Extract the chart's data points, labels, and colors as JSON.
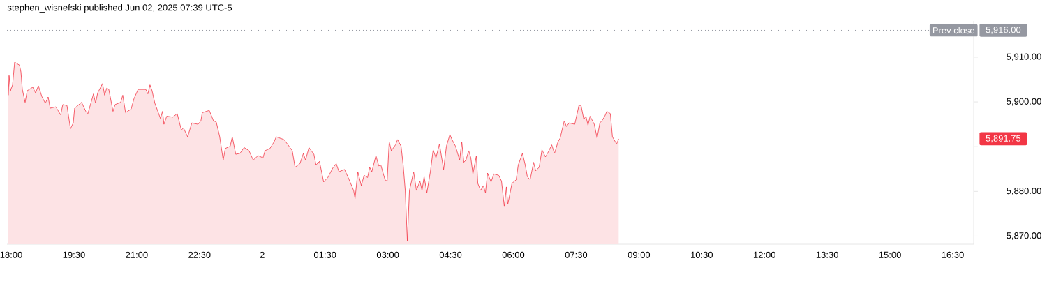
{
  "chart_data": {
    "type": "area",
    "title": "stephen_wisnefski published Jun 02, 2025 07:39 UTC-5",
    "x": [
      "2025-06-01T17:56",
      "2025-06-01T17:57",
      "2025-06-01T17:59",
      "2025-06-01T18:02",
      "2025-06-01T18:05",
      "2025-06-01T18:12",
      "2025-06-01T18:14",
      "2025-06-01T18:16",
      "2025-06-01T18:20",
      "2025-06-01T18:23",
      "2025-06-01T18:31",
      "2025-06-01T18:35",
      "2025-06-01T18:39",
      "2025-06-01T18:44",
      "2025-06-01T18:49",
      "2025-06-01T18:53",
      "2025-06-01T18:56",
      "2025-06-01T19:04",
      "2025-06-01T19:11",
      "2025-06-01T19:14",
      "2025-06-01T19:20",
      "2025-06-01T19:25",
      "2025-06-01T19:29",
      "2025-06-01T19:31",
      "2025-06-01T19:41",
      "2025-06-01T19:47",
      "2025-06-01T19:50",
      "2025-06-01T19:58",
      "2025-06-01T20:01",
      "2025-06-01T20:04",
      "2025-06-01T20:11",
      "2025-06-01T20:14",
      "2025-06-01T20:17",
      "2025-06-01T20:20",
      "2025-06-01T20:26",
      "2025-06-01T20:29",
      "2025-06-01T20:37",
      "2025-06-01T20:40",
      "2025-06-01T20:44",
      "2025-06-01T20:52",
      "2025-06-01T20:56",
      "2025-06-01T21:02",
      "2025-06-01T21:13",
      "2025-06-01T21:16",
      "2025-06-01T21:19",
      "2025-06-01T21:22",
      "2025-06-01T21:26",
      "2025-06-01T21:34",
      "2025-06-01T21:37",
      "2025-06-01T21:39",
      "2025-06-01T21:43",
      "2025-06-01T21:52",
      "2025-06-01T21:58",
      "2025-06-01T22:04",
      "2025-06-01T22:07",
      "2025-06-01T22:13",
      "2025-06-01T22:19",
      "2025-06-01T22:28",
      "2025-06-01T22:32",
      "2025-06-01T22:34",
      "2025-06-01T22:44",
      "2025-06-01T22:50",
      "2025-06-01T22:54",
      "2025-06-01T22:59",
      "2025-06-01T23:04",
      "2025-06-01T23:07",
      "2025-06-01T23:14",
      "2025-06-01T23:17",
      "2025-06-01T23:22",
      "2025-06-01T23:28",
      "2025-06-01T23:34",
      "2025-06-01T23:41",
      "2025-06-01T23:47",
      "2025-06-01T23:54",
      "2025-06-02T00:01",
      "2025-06-02T00:04",
      "2025-06-02T00:11",
      "2025-06-02T00:17",
      "2025-06-02T00:20",
      "2025-06-02T00:31",
      "2025-06-02T00:37",
      "2025-06-02T00:43",
      "2025-06-02T00:47",
      "2025-06-02T00:54",
      "2025-06-02T00:59",
      "2025-06-02T01:02",
      "2025-06-02T01:07",
      "2025-06-02T01:14",
      "2025-06-02T01:17",
      "2025-06-02T01:22",
      "2025-06-02T01:28",
      "2025-06-02T01:34",
      "2025-06-02T01:41",
      "2025-06-02T01:46",
      "2025-06-02T01:50",
      "2025-06-02T01:58",
      "2025-06-02T02:04",
      "2025-06-02T02:11",
      "2025-06-02T02:13",
      "2025-06-02T02:17",
      "2025-06-02T02:22",
      "2025-06-02T02:26",
      "2025-06-02T02:31",
      "2025-06-02T02:34",
      "2025-06-02T02:37",
      "2025-06-02T02:43",
      "2025-06-02T02:47",
      "2025-06-02T02:50",
      "2025-06-02T02:56",
      "2025-06-02T02:59",
      "2025-06-02T03:02",
      "2025-06-02T03:05",
      "2025-06-02T03:11",
      "2025-06-02T03:14",
      "2025-06-02T03:19",
      "2025-06-02T03:22",
      "2025-06-02T03:25",
      "2025-06-02T03:28",
      "2025-06-02T03:31",
      "2025-06-02T03:37",
      "2025-06-02T03:41",
      "2025-06-02T03:46",
      "2025-06-02T03:49",
      "2025-06-02T03:52",
      "2025-06-02T03:56",
      "2025-06-02T04:01",
      "2025-06-02T04:05",
      "2025-06-02T04:09",
      "2025-06-02T04:14",
      "2025-06-02T04:20",
      "2025-06-02T04:24",
      "2025-06-02T04:29",
      "2025-06-02T04:32",
      "2025-06-02T04:37",
      "2025-06-02T04:43",
      "2025-06-02T04:46",
      "2025-06-02T04:49",
      "2025-06-02T04:52",
      "2025-06-02T04:56",
      "2025-06-02T04:59",
      "2025-06-02T05:02",
      "2025-06-02T05:07",
      "2025-06-02T05:09",
      "2025-06-02T05:13",
      "2025-06-02T05:17",
      "2025-06-02T05:20",
      "2025-06-02T05:23",
      "2025-06-02T05:28",
      "2025-06-02T05:32",
      "2025-06-02T05:39",
      "2025-06-02T05:43",
      "2025-06-02T05:47",
      "2025-06-02T05:50",
      "2025-06-02T05:52",
      "2025-06-02T05:58",
      "2025-06-02T06:04",
      "2025-06-02T06:07",
      "2025-06-02T06:13",
      "2025-06-02T06:17",
      "2025-06-02T06:20",
      "2025-06-02T06:24",
      "2025-06-02T06:29",
      "2025-06-02T06:32",
      "2025-06-02T06:37",
      "2025-06-02T06:41",
      "2025-06-02T06:46",
      "2025-06-02T06:50",
      "2025-06-02T06:55",
      "2025-06-02T06:59",
      "2025-06-02T07:04",
      "2025-06-02T07:07",
      "2025-06-02T07:13",
      "2025-06-02T07:16",
      "2025-06-02T07:20",
      "2025-06-02T07:28",
      "2025-06-02T07:34",
      "2025-06-02T07:37",
      "2025-06-02T07:41",
      "2025-06-02T07:44",
      "2025-06-02T07:47",
      "2025-06-02T07:50",
      "2025-06-02T07:56",
      "2025-06-02T08:00",
      "2025-06-02T08:04",
      "2025-06-02T08:07",
      "2025-06-02T08:11",
      "2025-06-02T08:14",
      "2025-06-02T08:19",
      "2025-06-02T08:22",
      "2025-06-02T08:28",
      "2025-06-02T08:31"
    ],
    "series": [
      {
        "color": "#f23645",
        "values": [
          5901.5,
          5905.9,
          5902.5,
          5903.8,
          5908.9,
          5908.2,
          5906.7,
          5902.8,
          5899.9,
          5902.5,
          5903.3,
          5902.0,
          5903.6,
          5901.2,
          5899.7,
          5901.1,
          5898.6,
          5898.9,
          5897.1,
          5899.4,
          5899.2,
          5894.0,
          5895.3,
          5898.6,
          5899.9,
          5897.9,
          5897.4,
          5901.8,
          5899.7,
          5902.0,
          5904.1,
          5901.5,
          5903.1,
          5902.8,
          5897.9,
          5899.4,
          5899.9,
          5901.5,
          5897.6,
          5898.4,
          5900.7,
          5902.8,
          5902.8,
          5901.8,
          5903.8,
          5902.5,
          5899.7,
          5896.3,
          5897.9,
          5895.0,
          5896.8,
          5896.6,
          5897.4,
          5893.7,
          5894.2,
          5892.2,
          5895.3,
          5895.0,
          5895.8,
          5897.6,
          5898.1,
          5895.8,
          5895.5,
          5892.2,
          5887.0,
          5889.6,
          5890.1,
          5892.2,
          5888.3,
          5888.5,
          5889.8,
          5889.1,
          5887.0,
          5888.0,
          5887.5,
          5889.1,
          5889.6,
          5891.1,
          5892.2,
          5891.6,
          5890.4,
          5889.1,
          5885.4,
          5886.2,
          5888.5,
          5887.0,
          5889.8,
          5888.3,
          5885.9,
          5886.7,
          5882.1,
          5883.1,
          5885.2,
          5886.2,
          5884.4,
          5884.9,
          5882.8,
          5880.2,
          5878.4,
          5884.4,
          5881.3,
          5883.6,
          5883.1,
          5885.4,
          5884.4,
          5888.0,
          5885.7,
          5885.9,
          5882.6,
          5882.3,
          5891.1,
          5889.1,
          5890.4,
          5891.6,
          5890.1,
          5885.9,
          5880.2,
          5868.9,
          5880.2,
          5884.4,
          5880.2,
          5882.3,
          5880.2,
          5883.3,
          5879.7,
          5884.4,
          5889.3,
          5887.5,
          5890.6,
          5884.9,
          5890.1,
          5892.7,
          5891.6,
          5890.1,
          5887.0,
          5891.1,
          5886.5,
          5887.0,
          5889.1,
          5887.5,
          5883.9,
          5888.0,
          5881.8,
          5880.2,
          5881.3,
          5879.7,
          5884.1,
          5882.1,
          5883.9,
          5883.6,
          5882.3,
          5876.6,
          5881.0,
          5877.1,
          5881.8,
          5882.6,
          5885.9,
          5888.5,
          5885.9,
          5883.3,
          5882.6,
          5886.5,
          5884.6,
          5885.4,
          5889.3,
          5887.7,
          5888.8,
          5890.4,
          5888.5,
          5891.1,
          5891.9,
          5895.8,
          5894.5,
          5895.3,
          5895.0,
          5899.2,
          5899.2,
          5896.1,
          5896.8,
          5894.8,
          5896.8,
          5895.0,
          5891.9,
          5895.3,
          5895.8,
          5896.8,
          5897.9,
          5897.4,
          5892.2,
          5890.6,
          5891.75
        ]
      }
    ],
    "xlim": [
      "2025-06-01T17:54",
      "2025-06-02T17:00"
    ],
    "ylim": [
      5868.2,
      5918.1
    ],
    "xticks": [
      {
        "value": "2025-06-01T18:00",
        "label": "18:00"
      },
      {
        "value": "2025-06-01T19:30",
        "label": "19:30"
      },
      {
        "value": "2025-06-01T21:00",
        "label": "21:00"
      },
      {
        "value": "2025-06-01T22:30",
        "label": "22:30"
      },
      {
        "value": "2025-06-02T00:00",
        "label": "2"
      },
      {
        "value": "2025-06-02T01:30",
        "label": "01:30"
      },
      {
        "value": "2025-06-02T03:00",
        "label": "03:00"
      },
      {
        "value": "2025-06-02T04:30",
        "label": "04:30"
      },
      {
        "value": "2025-06-02T06:00",
        "label": "06:00"
      },
      {
        "value": "2025-06-02T07:30",
        "label": "07:30"
      },
      {
        "value": "2025-06-02T09:00",
        "label": "09:00"
      },
      {
        "value": "2025-06-02T10:30",
        "label": "10:30"
      },
      {
        "value": "2025-06-02T12:00",
        "label": "12:00"
      },
      {
        "value": "2025-06-02T13:30",
        "label": "13:30"
      },
      {
        "value": "2025-06-02T15:00",
        "label": "15:00"
      },
      {
        "value": "2025-06-02T16:30",
        "label": "16:30"
      }
    ],
    "yticks": [
      {
        "value": 5870,
        "label": "5,870.00"
      },
      {
        "value": 5880,
        "label": "5,880.00"
      },
      {
        "value": 5890,
        "label": null
      },
      {
        "value": 5900,
        "label": "5,900.00"
      },
      {
        "value": 5910,
        "label": "5,910.00"
      }
    ],
    "ref_lines": [
      {
        "axis": "y",
        "value": 5916,
        "label": "Prev close",
        "color": "#9598a1",
        "line_style": "dotted"
      }
    ],
    "annotations": [
      "5,916.00",
      "5,891.75"
    ]
  }
}
